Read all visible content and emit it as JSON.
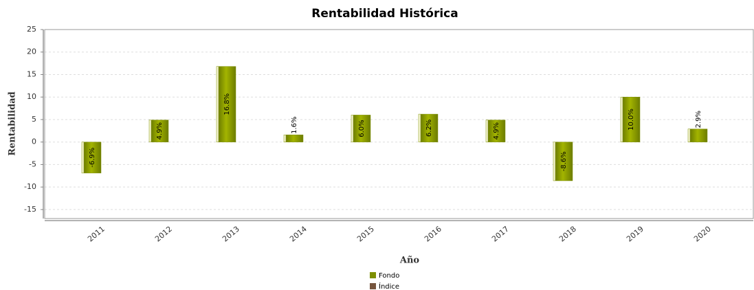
{
  "chart_data": {
    "type": "bar",
    "title": "Rentabilidad Histórica",
    "x_label": "Año",
    "y_label": "Rentabilidad",
    "categories": [
      "2011",
      "2012",
      "2013",
      "2014",
      "2015",
      "2016",
      "2017",
      "2018",
      "2019",
      "2020"
    ],
    "series": [
      {
        "name": "Fondo",
        "color": "#7d8f00",
        "values": [
          -6.9,
          4.9,
          16.8,
          1.6,
          6.0,
          6.2,
          4.9,
          -8.6,
          10.0,
          2.9
        ],
        "value_labels": [
          "-6.9%",
          "4.9%",
          "16.8%",
          "1.6%",
          "6.0%",
          "6.2%",
          "4.9%",
          "-8.6%",
          "10.0%",
          "2.9%"
        ]
      },
      {
        "name": "Índice",
        "color": "#76553e",
        "values": [
          null,
          null,
          null,
          null,
          null,
          null,
          null,
          null,
          null,
          null
        ]
      }
    ],
    "ylim": [
      -17,
      25
    ],
    "yticks": [
      -15,
      -10,
      -5,
      0,
      5,
      10,
      15,
      20,
      25
    ],
    "grid": true,
    "legend": "bottom"
  }
}
